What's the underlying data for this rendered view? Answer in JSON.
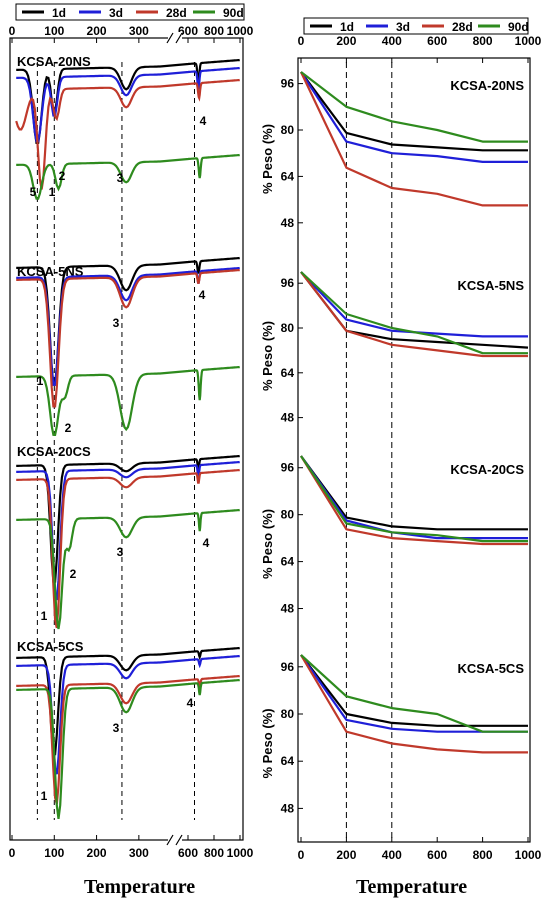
{
  "legend": [
    {
      "label": "1d",
      "color": "#000000"
    },
    {
      "label": "3d",
      "color": "#1f1fd8"
    },
    {
      "label": "28d",
      "color": "#c0392b"
    },
    {
      "label": "90d",
      "color": "#2e8b1e"
    }
  ],
  "xlabel": "Temperature",
  "chart_data": [
    {
      "type": "line",
      "panel": "left (DTG)",
      "xlabel": "Temperature",
      "x_ticks": [
        "0",
        "100",
        "200",
        "300",
        "600",
        "800",
        "1000"
      ],
      "x_ticks_bottom": [
        "0",
        "100",
        "200",
        "300",
        "600",
        "800",
        "1000"
      ],
      "axis_break": true,
      "ylabel": "",
      "reference_lines_x": [
        60,
        100,
        260,
        650
      ],
      "subplots": [
        {
          "name": "KCSA-20NS",
          "peak_labels": [
            "1",
            "2",
            "3",
            "4",
            "5"
          ]
        },
        {
          "name": "KCSA-5NS",
          "peak_labels": [
            "1",
            "2",
            "3",
            "4"
          ]
        },
        {
          "name": "KCSA-20CS",
          "peak_labels": [
            "1",
            "2",
            "3",
            "4"
          ]
        },
        {
          "name": "KCSA-5CS",
          "peak_labels": [
            "1",
            "3",
            "4"
          ]
        }
      ],
      "series": [
        {
          "name": "1d"
        },
        {
          "name": "3d"
        },
        {
          "name": "28d"
        },
        {
          "name": "90d"
        }
      ]
    },
    {
      "type": "line",
      "panel": "right (TG)",
      "xlabel": "Temperature",
      "ylabel": "% Peso (%)",
      "x": [
        0,
        200,
        400,
        600,
        800,
        1000
      ],
      "xlim": [
        0,
        1000
      ],
      "ylim": [
        40,
        100
      ],
      "y_ticks": [
        48,
        64,
        80,
        96
      ],
      "reference_lines_x": [
        200,
        400
      ],
      "subplots": [
        {
          "name": "KCSA-20NS",
          "series": [
            {
              "name": "1d",
              "values": [
                100,
                79,
                75,
                74,
                73,
                73
              ]
            },
            {
              "name": "3d",
              "values": [
                100,
                76,
                72,
                71,
                69,
                69
              ]
            },
            {
              "name": "28d",
              "values": [
                100,
                67,
                60,
                58,
                54,
                54
              ]
            },
            {
              "name": "90d",
              "values": [
                100,
                88,
                83,
                80,
                76,
                76
              ]
            }
          ]
        },
        {
          "name": "KCSA-5NS",
          "series": [
            {
              "name": "1d",
              "values": [
                100,
                79,
                76,
                75,
                74,
                73
              ]
            },
            {
              "name": "3d",
              "values": [
                100,
                83,
                79,
                78,
                77,
                77
              ]
            },
            {
              "name": "28d",
              "values": [
                100,
                79,
                74,
                72,
                70,
                70
              ]
            },
            {
              "name": "90d",
              "values": [
                100,
                85,
                80,
                77,
                71,
                71
              ]
            }
          ]
        },
        {
          "name": "KCSA-20CS",
          "series": [
            {
              "name": "1d",
              "values": [
                100,
                79,
                76,
                75,
                75,
                75
              ]
            },
            {
              "name": "3d",
              "values": [
                100,
                78,
                74,
                72,
                72,
                72
              ]
            },
            {
              "name": "28d",
              "values": [
                100,
                75,
                72,
                71,
                70,
                70
              ]
            },
            {
              "name": "90d",
              "values": [
                100,
                77,
                74,
                73,
                71,
                71
              ]
            }
          ]
        },
        {
          "name": "KCSA-5CS",
          "series": [
            {
              "name": "1d",
              "values": [
                100,
                80,
                77,
                76,
                76,
                76
              ]
            },
            {
              "name": "3d",
              "values": [
                100,
                78,
                75,
                74,
                74,
                74
              ]
            },
            {
              "name": "28d",
              "values": [
                100,
                74,
                70,
                68,
                67,
                67
              ]
            },
            {
              "name": "90d",
              "values": [
                100,
                86,
                82,
                80,
                74,
                74
              ]
            }
          ]
        }
      ]
    }
  ]
}
